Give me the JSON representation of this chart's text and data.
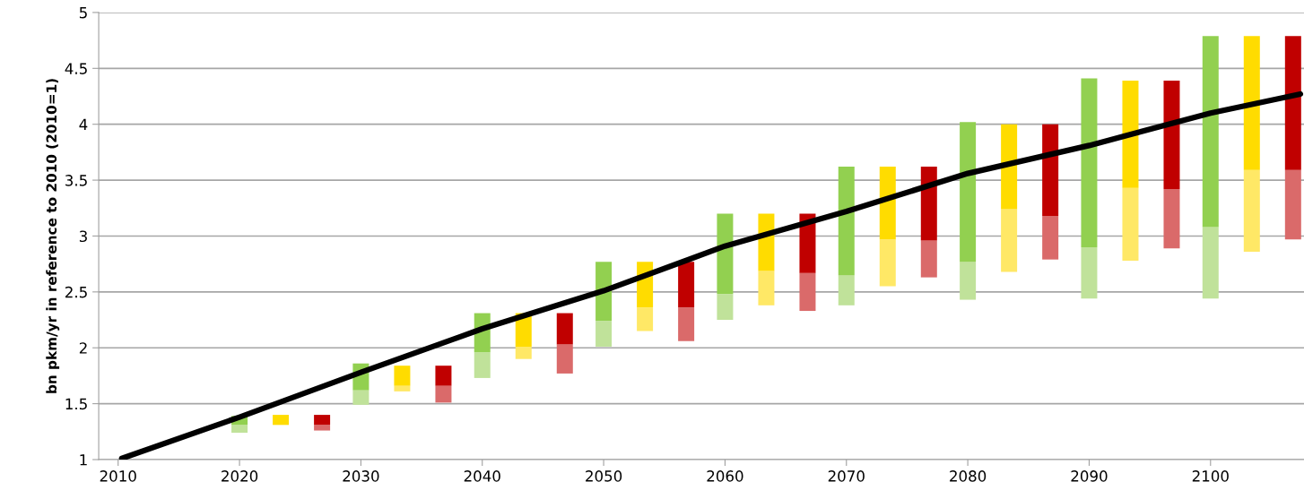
{
  "chart_data": {
    "type": "bar",
    "ylabel": "bn pkm/yr in reference to 2010 (2010=1)",
    "xlim": [
      2008.4,
      2107.7
    ],
    "xticks": [
      2010,
      2020,
      2030,
      2040,
      2050,
      2060,
      2070,
      2080,
      2090,
      2100
    ],
    "ylim": [
      1,
      5
    ],
    "yticks": [
      1,
      1.5,
      2,
      2.5,
      3,
      3.5,
      4,
      4.5,
      5
    ],
    "grid": "y",
    "legend": false,
    "series": [
      {
        "color": "#c0e29a",
        "x": [
          2020,
          2030,
          2040,
          2050,
          2060,
          2070,
          2080,
          2090,
          2100
        ],
        "base": [
          1.24,
          1.49,
          1.73,
          2.01,
          2.25,
          2.38,
          2.43,
          2.44,
          2.44
        ],
        "values": [
          0.07,
          0.13,
          0.23,
          0.23,
          0.23,
          0.27,
          0.34,
          0.46,
          0.64
        ]
      },
      {
        "color": "#92d050",
        "x": [
          2020,
          2030,
          2040,
          2050,
          2060,
          2070,
          2080,
          2090,
          2100
        ],
        "base": [
          1.31,
          1.62,
          1.96,
          2.24,
          2.48,
          2.65,
          2.77,
          2.9,
          3.08
        ],
        "values": [
          0.08,
          0.24,
          0.35,
          0.53,
          0.72,
          0.97,
          1.25,
          1.51,
          1.71
        ]
      },
      {
        "color": "#ffe866",
        "x": [
          2033.4,
          2043.4,
          2053.4,
          2063.4,
          2073.4,
          2083.4,
          2093.4,
          2103.4
        ],
        "base": [
          1.61,
          1.9,
          2.15,
          2.38,
          2.55,
          2.68,
          2.78,
          2.86
        ],
        "values": [
          0.05,
          0.11,
          0.21,
          0.31,
          0.42,
          0.56,
          0.65,
          0.73
        ]
      },
      {
        "color": "#ffdc00",
        "x": [
          2023.4,
          2033.4,
          2043.4,
          2053.4,
          2063.4,
          2073.4,
          2083.4,
          2093.4,
          2103.4
        ],
        "base": [
          1.31,
          1.66,
          2.01,
          2.36,
          2.69,
          2.97,
          3.24,
          3.43,
          3.59
        ],
        "values": [
          0.09,
          0.18,
          0.3,
          0.41,
          0.51,
          0.65,
          0.76,
          0.96,
          1.2
        ]
      },
      {
        "color": "#da6a6a",
        "x": [
          2026.8,
          2036.8,
          2046.8,
          2056.8,
          2066.8,
          2076.8,
          2086.8,
          2096.8,
          2106.8
        ],
        "base": [
          1.26,
          1.51,
          1.77,
          2.06,
          2.33,
          2.63,
          2.79,
          2.89,
          2.97
        ],
        "values": [
          0.05,
          0.15,
          0.26,
          0.3,
          0.34,
          0.33,
          0.39,
          0.53,
          0.62
        ]
      },
      {
        "color": "#c00000",
        "x": [
          2026.8,
          2036.8,
          2046.8,
          2056.8,
          2066.8,
          2076.8,
          2086.8,
          2096.8,
          2106.8
        ],
        "base": [
          1.31,
          1.66,
          2.03,
          2.36,
          2.67,
          2.96,
          3.18,
          3.42,
          3.59
        ],
        "values": [
          0.09,
          0.18,
          0.28,
          0.41,
          0.53,
          0.66,
          0.82,
          0.97,
          1.2
        ]
      },
      {
        "type": "line",
        "color": "#000000",
        "line_style": "solid",
        "x": [
          2010.3,
          2020,
          2030,
          2040,
          2050,
          2060,
          2070,
          2080,
          2090,
          2100,
          2107.4
        ],
        "values": [
          1.01,
          1.38,
          1.78,
          2.17,
          2.51,
          2.91,
          3.22,
          3.56,
          3.81,
          4.1,
          4.27
        ]
      }
    ]
  }
}
